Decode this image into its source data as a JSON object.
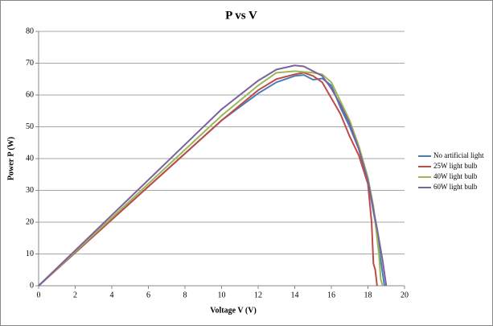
{
  "chart_data": {
    "type": "line",
    "title": "P vs V",
    "x_label": "Voltage V (V)",
    "y_label": "Power P (W)",
    "xlim": [
      0,
      20
    ],
    "xticks": [
      0,
      2,
      4,
      6,
      8,
      10,
      12,
      14,
      16,
      18,
      20
    ],
    "ylim": [
      0,
      80
    ],
    "yticks": [
      0,
      10,
      20,
      30,
      40,
      50,
      60,
      70,
      80
    ],
    "grid": true,
    "legend": "right",
    "series": [
      {
        "name": "No artificial light",
        "color": "#4a7ebb",
        "x": [
          0,
          10,
          12,
          13,
          14,
          14.5,
          15,
          15.5,
          16,
          16.5,
          17,
          17.5,
          18,
          18.4,
          18.7,
          18.9
        ],
        "values": [
          0,
          52,
          60.5,
          64,
          66,
          66.3,
          64.8,
          65.2,
          63,
          56,
          50,
          43,
          33,
          20,
          8,
          0
        ]
      },
      {
        "name": "25W light bulb",
        "color": "#be4b48",
        "x": [
          0,
          10,
          12,
          13,
          14,
          14.5,
          15,
          15.5,
          16,
          16.5,
          17,
          17.5,
          18,
          18.2,
          18.3,
          18.4,
          18.5
        ],
        "values": [
          0,
          52,
          61.5,
          65,
          66.5,
          67,
          66,
          64,
          59,
          54,
          47,
          41,
          32,
          20,
          7,
          5,
          0
        ]
      },
      {
        "name": "40W light bulb",
        "color": "#98b954",
        "x": [
          0,
          10,
          12,
          13,
          14,
          15,
          15.5,
          16,
          16.5,
          17,
          17.5,
          18,
          18.3,
          18.6,
          18.7,
          18.8
        ],
        "values": [
          0,
          53.5,
          63,
          67,
          67.5,
          67,
          66.5,
          64,
          58,
          52,
          44,
          34,
          25,
          10,
          2,
          0
        ]
      },
      {
        "name": "60W light bulb",
        "color": "#7d60a0",
        "x": [
          0,
          10,
          12,
          13,
          14,
          14.5,
          15,
          15.5,
          16,
          16.5,
          17,
          17.5,
          18,
          18.5,
          18.8,
          19
        ],
        "values": [
          0,
          55.5,
          64.5,
          68,
          69.3,
          69,
          67.5,
          66,
          62,
          57,
          51,
          43,
          33,
          18,
          8,
          0
        ]
      }
    ]
  }
}
